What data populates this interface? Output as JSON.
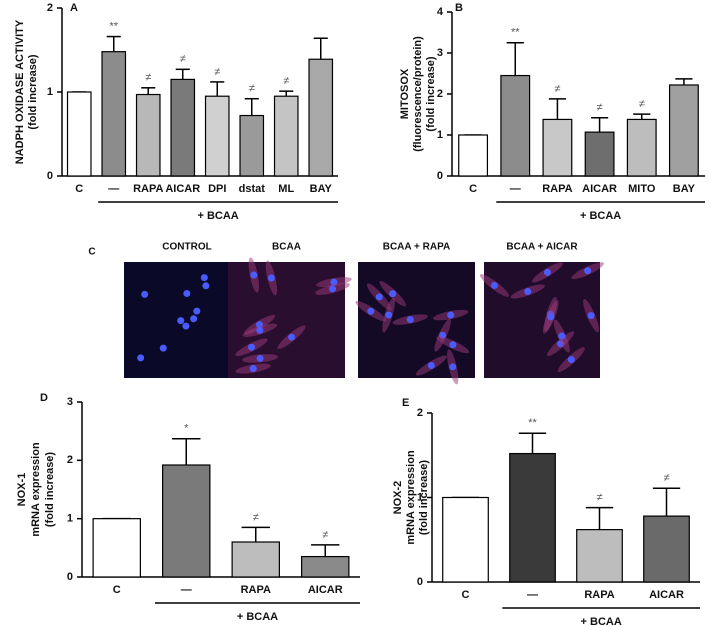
{
  "chart_data": [
    {
      "type": "bar",
      "panel_label": "A",
      "ylabel": [
        "NADPH OXIDASE ACTIVITY",
        "(fold increase)"
      ],
      "categories": [
        "C",
        "—",
        "RAPA",
        "AICAR",
        "DPI",
        "dstat",
        "ML",
        "BAY"
      ],
      "values": [
        1.0,
        1.48,
        0.97,
        1.15,
        0.95,
        0.72,
        0.95,
        1.39
      ],
      "errors": [
        0,
        0.18,
        0.08,
        0.12,
        0.17,
        0.2,
        0.06,
        0.25
      ],
      "annotations": [
        null,
        "**",
        "≠",
        "≠",
        "≠",
        "≠",
        "≠",
        null
      ],
      "colors": [
        "#ffffff",
        "#8c8c8c",
        "#b8b8b8",
        "#7a7a7a",
        "#d0d0d0",
        "#9a9a9a",
        "#c4c4c4",
        "#a8a8a8"
      ],
      "group_label": "+ BCAA",
      "ylim": [
        0,
        2
      ],
      "yticks": [
        0,
        1,
        2
      ]
    },
    {
      "type": "bar",
      "panel_label": "B",
      "ylabel": [
        "MITOSOX",
        "(fluorescence/protein)",
        "(fold increase)"
      ],
      "categories": [
        "C",
        "—",
        "RAPA",
        "AICAR",
        "MITO",
        "BAY"
      ],
      "values": [
        1.0,
        2.45,
        1.38,
        1.07,
        1.38,
        2.22
      ],
      "errors": [
        0,
        0.8,
        0.5,
        0.35,
        0.13,
        0.15
      ],
      "annotations": [
        null,
        "**",
        "≠",
        "≠",
        "≠",
        null
      ],
      "colors": [
        "#ffffff",
        "#8c8c8c",
        "#c8c8c8",
        "#6e6e6e",
        "#bdbdbd",
        "#a0a0a0"
      ],
      "group_label": "+ BCAA",
      "ylim": [
        0,
        4
      ],
      "yticks": [
        0,
        1,
        2,
        3,
        4
      ]
    },
    {
      "type": "bar",
      "panel_label": "D",
      "ylabel": [
        "NOX-1",
        "mRNA expression",
        "(fold increase)"
      ],
      "categories": [
        "C",
        "—",
        "RAPA",
        "AICAR"
      ],
      "values": [
        1.0,
        1.92,
        0.6,
        0.35
      ],
      "errors": [
        0,
        0.45,
        0.25,
        0.2
      ],
      "annotations": [
        null,
        "*",
        "≠",
        "≠"
      ],
      "colors": [
        "#ffffff",
        "#7a7a7a",
        "#bdbdbd",
        "#8a8a8a"
      ],
      "group_label": "+ BCAA",
      "ylim": [
        0,
        3
      ],
      "yticks": [
        0,
        1,
        2,
        3
      ]
    },
    {
      "type": "bar",
      "panel_label": "E",
      "ylabel": [
        "NOX-2",
        "mRNA expression",
        "(fold increase)"
      ],
      "categories": [
        "C",
        "—",
        "RAPA",
        "AICAR"
      ],
      "values": [
        1.0,
        1.52,
        0.62,
        0.78
      ],
      "errors": [
        0,
        0.24,
        0.26,
        0.33
      ],
      "annotations": [
        null,
        "**",
        "≠",
        "≠"
      ],
      "colors": [
        "#ffffff",
        "#3a3a3a",
        "#bdbdbd",
        "#6a6a6a"
      ],
      "group_label": "+ BCAA",
      "ylim": [
        0,
        2
      ],
      "yticks": [
        0,
        1,
        2
      ]
    }
  ],
  "image_panel": {
    "panel_label": "C",
    "titles": [
      "CONTROL",
      "BCAA",
      "BCAA + RAPA",
      "BCAA + AICAR"
    ]
  }
}
